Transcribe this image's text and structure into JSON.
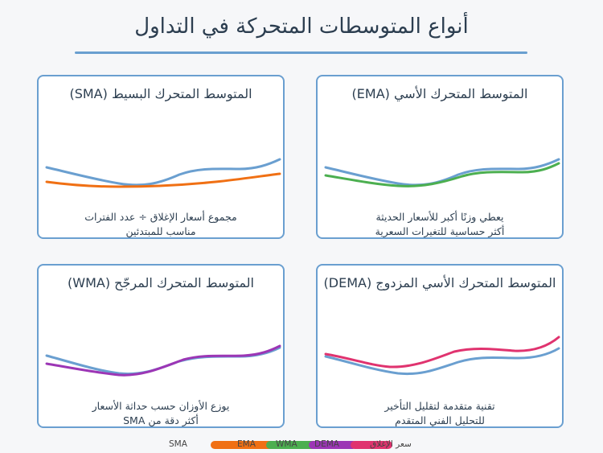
{
  "title": "أنواع المتوسطات المتحركة في التداول",
  "colors": {
    "price": "#6a9fd0",
    "sma": "#f07014",
    "ema": "#4caf50",
    "wma": "#9c36b5",
    "dema": "#e0336f"
  },
  "cards": {
    "ema": {
      "title": "المتوسط المتحرك الأسي (EMA)",
      "desc1": "يعطي وزنًا أكبر للأسعار الحديثة",
      "desc2": "أكثر حساسية للتغيرات السعرية"
    },
    "sma": {
      "title": "المتوسط المتحرك البسيط (SMA)",
      "desc1": "مجموع أسعار الإغلاق ÷ عدد الفترات",
      "desc2": "مناسب للمبتدئين"
    },
    "dema": {
      "title": "المتوسط المتحرك الأسي المزدوج (DEMA)",
      "desc1": "تقنية متقدمة لتقليل التأخير",
      "desc2": "للتحليل الفني المتقدم"
    },
    "wma": {
      "title": "المتوسط المتحرك المرجّح (WMA)",
      "desc1": "يوزع الأوزان حسب حداثة الأسعار",
      "desc2": "أكثر دقة من SMA"
    }
  },
  "legend": {
    "sma": "SMA",
    "ema": "EMA",
    "wma": "WMA",
    "dema": "DEMA",
    "price": "سعر الإغلاق"
  }
}
